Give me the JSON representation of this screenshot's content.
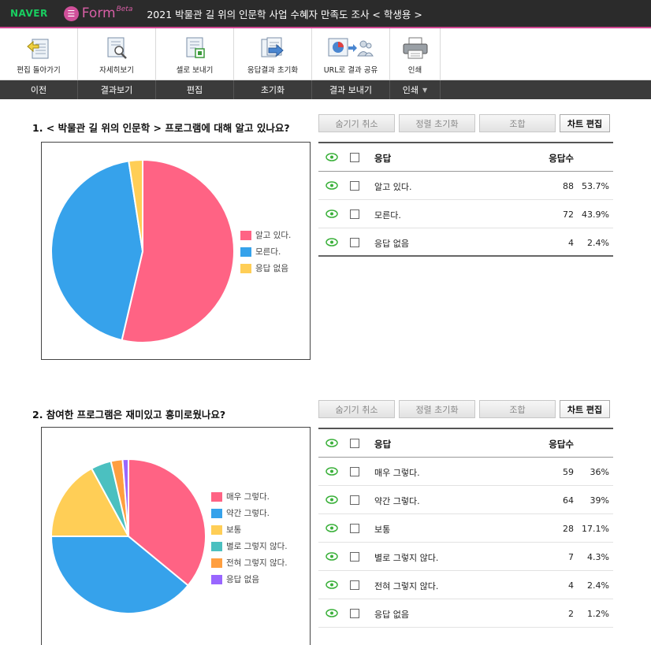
{
  "header": {
    "brand": "NAVER",
    "app_name": "Form",
    "app_badge": "Beta",
    "doc_title": "2021 박물관 길 위의 인문학 사업 수혜자 만족도 조사 < 학생용 >"
  },
  "toolbar": {
    "buttons": [
      {
        "label": "편집 돌아가기",
        "icon": "back-to-edit-icon"
      },
      {
        "label": "자세히보기",
        "icon": "magnifier-icon"
      },
      {
        "label": "셀로 보내기",
        "icon": "export-cell-icon"
      },
      {
        "label": "응답결과 초기화",
        "icon": "reset-results-icon"
      },
      {
        "label": "URL로 결과 공유",
        "icon": "share-url-icon"
      },
      {
        "label": "인쇄",
        "icon": "printer-icon"
      }
    ]
  },
  "sections": [
    {
      "label": "이전"
    },
    {
      "label": "결과보기"
    },
    {
      "label": "편집"
    },
    {
      "label": "초기화"
    },
    {
      "label": "결과 보내기"
    },
    {
      "label": "인쇄"
    }
  ],
  "buttons": {
    "unhide": "숨기기 취소",
    "reset_sort": "정렬 초기화",
    "combine": "조합",
    "edit_chart": "차트 편집"
  },
  "table_headers": {
    "answer": "응답",
    "count": "응답수"
  },
  "questions": [
    {
      "title": "1. < 박물관 길 위의 인문학 > 프로그램에 대해 알고 있나요?",
      "options": [
        {
          "label": "알고 있다.",
          "count": "88",
          "pct": "53.7%",
          "color": "#ff6384"
        },
        {
          "label": "모른다.",
          "count": "72",
          "pct": "43.9%",
          "color": "#36a2eb"
        },
        {
          "label": "응답 없음",
          "count": "4",
          "pct": "2.4%",
          "color": "#ffce56"
        }
      ]
    },
    {
      "title": "2. 참여한 프로그램은 재미있고 흥미로웠나요?",
      "options": [
        {
          "label": "매우 그렇다.",
          "count": "59",
          "pct": "36%",
          "color": "#ff6384"
        },
        {
          "label": "약간 그렇다.",
          "count": "64",
          "pct": "39%",
          "color": "#36a2eb"
        },
        {
          "label": "보통",
          "count": "28",
          "pct": "17.1%",
          "color": "#ffce56"
        },
        {
          "label": "별로 그렇지 않다.",
          "count": "7",
          "pct": "4.3%",
          "color": "#4bc0c0"
        },
        {
          "label": "전혀 그렇지 않다.",
          "count": "4",
          "pct": "2.4%",
          "color": "#ff9f40"
        },
        {
          "label": "응답 없음",
          "count": "2",
          "pct": "1.2%",
          "color": "#9966ff"
        }
      ]
    }
  ],
  "chart_data": [
    {
      "type": "pie",
      "categories": [
        "알고 있다.",
        "모른다.",
        "응답 없음"
      ],
      "values": [
        88,
        72,
        4
      ],
      "legend": "right"
    },
    {
      "type": "pie",
      "categories": [
        "매우 그렇다.",
        "약간 그렇다.",
        "보통",
        "별로 그렇지 않다.",
        "전혀 그렇지 않다.",
        "응답 없음"
      ],
      "values": [
        59,
        64,
        28,
        7,
        4,
        2
      ],
      "legend": "right"
    }
  ]
}
